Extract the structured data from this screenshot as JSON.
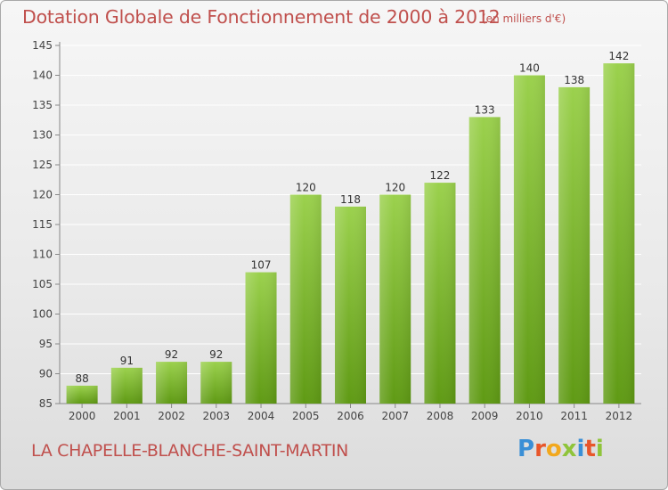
{
  "header": {
    "title": "Dotation Globale de Fonctionnement de 2000 à 2012",
    "unit": "(en milliers d'€)"
  },
  "footer": {
    "commune": "LA CHAPELLE-BLANCHE-SAINT-MARTIN",
    "logo_text": "Proxiti",
    "logo_colors": [
      "#3a8fd6",
      "#e8562a",
      "#f2a81d",
      "#8fc43a",
      "#3a8fd6",
      "#e8562a",
      "#8fc43a"
    ]
  },
  "chart_data": {
    "type": "bar",
    "title": "Dotation Globale de Fonctionnement de 2000 à 2012",
    "subtitle": "(en milliers d'€)",
    "categories": [
      "2000",
      "2001",
      "2002",
      "2003",
      "2004",
      "2005",
      "2006",
      "2007",
      "2008",
      "2009",
      "2010",
      "2011",
      "2012"
    ],
    "values": [
      88,
      91,
      92,
      92,
      107,
      120,
      118,
      120,
      122,
      133,
      140,
      138,
      142
    ],
    "ylim": [
      85,
      145
    ],
    "yticks": [
      85,
      90,
      95,
      100,
      105,
      110,
      115,
      120,
      125,
      130,
      135,
      140,
      145
    ],
    "grid": true,
    "colors": {
      "bar_top": "#9bd14d",
      "bar_bottom": "#5f9a14",
      "grid": "#ffffff",
      "label": "#333333"
    }
  }
}
